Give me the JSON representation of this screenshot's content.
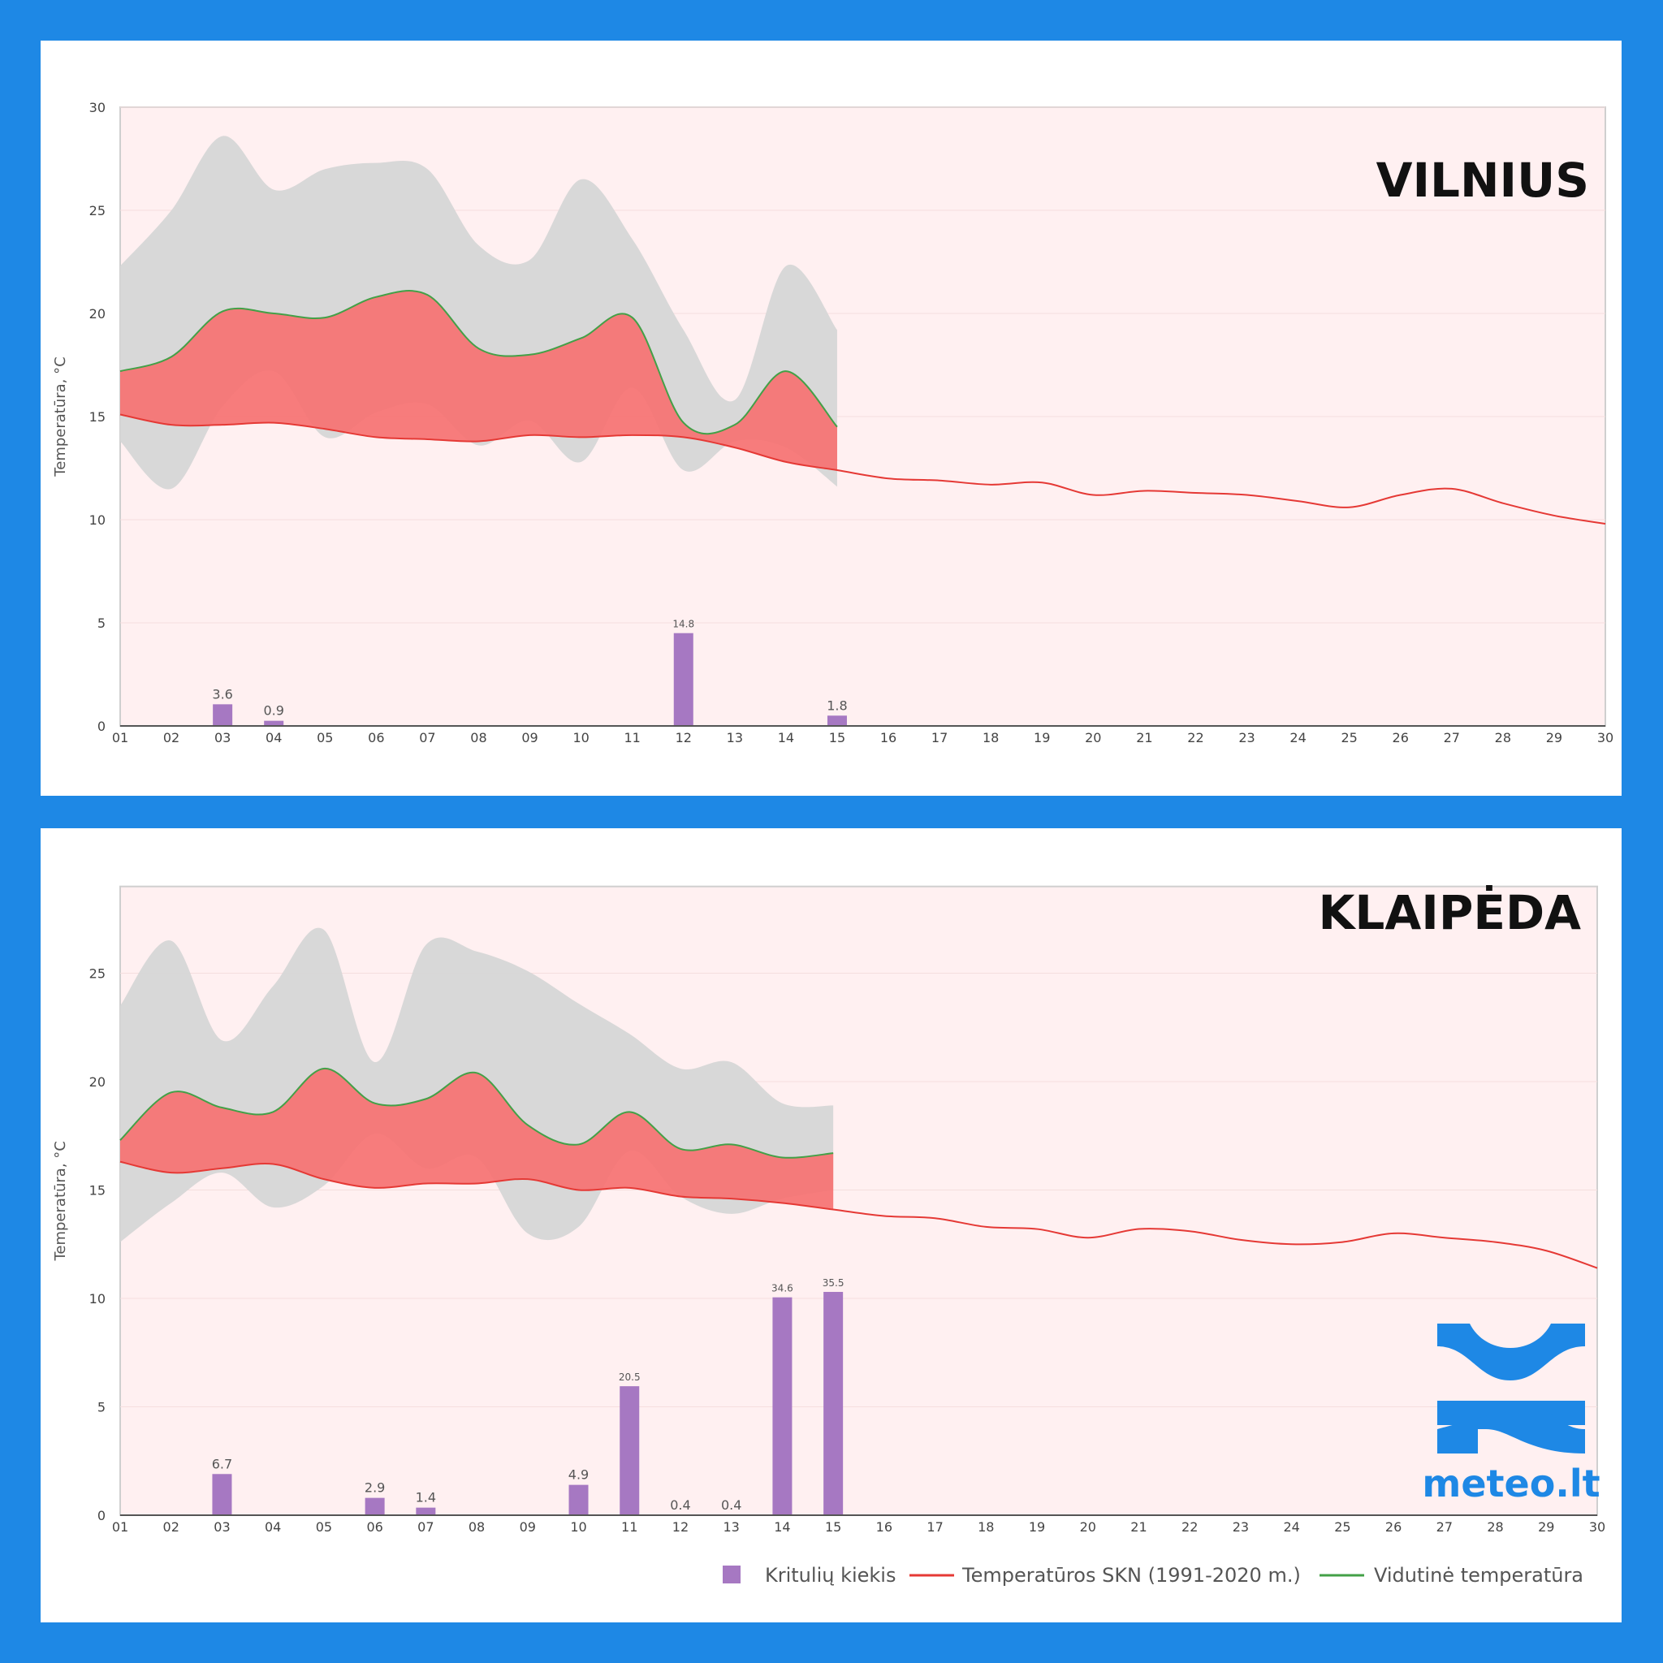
{
  "colors": {
    "frame": "#1e88e5",
    "plot_bg": "#fff0f1",
    "range_band": "#d6d6d6",
    "anomaly_fill": "#f06b6b",
    "anomaly_light": "#ff7f7f",
    "normal_line": "#e53935",
    "mean_line": "#43a047",
    "precip_bar": "#a678c2"
  },
  "legend": {
    "precip": "Kritulių kiekis",
    "normal": "Temperatūros SKN (1991-2020 m.)",
    "mean": "Vidutinė temperatūra"
  },
  "logo": {
    "text": "meteo.lt",
    "icon": "meteo-wave-logo-icon"
  },
  "chart_data": [
    {
      "type": "line",
      "title": "VILNIUS",
      "ylabel": "Temperatūra, °C",
      "ylim": [
        0,
        30
      ],
      "yticks": [
        0,
        5,
        10,
        15,
        20,
        25,
        30
      ],
      "days": [
        "01",
        "02",
        "03",
        "04",
        "05",
        "06",
        "07",
        "08",
        "09",
        "10",
        "11",
        "12",
        "13",
        "14",
        "15",
        "16",
        "17",
        "18",
        "19",
        "20",
        "21",
        "22",
        "23",
        "24",
        "25",
        "26",
        "27",
        "28",
        "29",
        "30"
      ],
      "grid": true,
      "series": [
        {
          "name": "Temperatūros SKN (1991-2020 m.)",
          "values": [
            15.1,
            14.6,
            14.6,
            14.7,
            14.4,
            14.0,
            13.9,
            13.8,
            14.1,
            14.0,
            14.1,
            14.0,
            13.5,
            12.8,
            12.4,
            12.0,
            11.9,
            11.7,
            11.8,
            11.2,
            11.4,
            11.3,
            11.2,
            10.9,
            10.6,
            11.2,
            11.5,
            10.8,
            10.2,
            9.8
          ]
        },
        {
          "name": "Vidutinė temperatūra",
          "values": [
            17.2,
            17.9,
            20.1,
            20.0,
            19.8,
            20.8,
            20.9,
            18.3,
            18.0,
            18.8,
            19.8,
            14.7,
            14.6,
            17.2,
            14.5
          ]
        }
      ],
      "range_max": [
        22.3,
        25.0,
        28.6,
        26.0,
        27.0,
        27.3,
        27.0,
        23.3,
        22.6,
        26.5,
        23.6,
        19.2,
        15.8,
        22.3,
        19.2
      ],
      "range_min": [
        13.8,
        11.5,
        15.5,
        17.2,
        14.0,
        15.2,
        15.6,
        13.6,
        14.8,
        12.8,
        16.4,
        12.4,
        13.8,
        13.5,
        11.6
      ],
      "precip": {
        "name": "Kritulių kiekis",
        "days": [
          "03",
          "04",
          "12",
          "15"
        ],
        "values": [
          3.6,
          0.9,
          14.8,
          1.8
        ],
        "bar_heights": [
          1.05,
          0.25,
          4.5,
          0.5
        ]
      }
    },
    {
      "type": "line",
      "title": "KLAIPĖDA",
      "ylabel": "Temperatūra, °C",
      "ylim": [
        0,
        29
      ],
      "yticks": [
        0,
        5,
        10,
        15,
        20,
        25
      ],
      "days": [
        "01",
        "02",
        "03",
        "04",
        "05",
        "06",
        "07",
        "08",
        "09",
        "10",
        "11",
        "12",
        "13",
        "14",
        "15",
        "16",
        "17",
        "18",
        "19",
        "20",
        "21",
        "22",
        "23",
        "24",
        "25",
        "26",
        "27",
        "28",
        "29",
        "30"
      ],
      "grid": true,
      "series": [
        {
          "name": "Temperatūros SKN (1991-2020 m.)",
          "values": [
            16.3,
            15.8,
            16.0,
            16.2,
            15.5,
            15.1,
            15.3,
            15.3,
            15.5,
            15.0,
            15.1,
            14.7,
            14.6,
            14.4,
            14.1,
            13.8,
            13.7,
            13.3,
            13.2,
            12.8,
            13.2,
            13.1,
            12.7,
            12.5,
            12.6,
            13.0,
            12.8,
            12.6,
            12.2,
            11.4
          ]
        },
        {
          "name": "Vidutinė temperatūra",
          "values": [
            17.3,
            19.5,
            18.8,
            18.6,
            20.6,
            19.0,
            19.2,
            20.4,
            18.0,
            17.1,
            18.6,
            16.9,
            17.1,
            16.5,
            16.7
          ]
        }
      ],
      "range_max": [
        23.5,
        26.5,
        21.9,
        24.4,
        27.0,
        20.9,
        26.3,
        26.0,
        25.1,
        23.6,
        22.2,
        20.6,
        20.9,
        19.0,
        18.9
      ],
      "range_min": [
        12.6,
        14.4,
        15.8,
        14.2,
        15.2,
        17.6,
        16.0,
        16.5,
        13.0,
        13.3,
        16.8,
        14.7,
        13.9,
        14.6,
        15.0
      ],
      "precip": {
        "name": "Kritulių kiekis",
        "days": [
          "03",
          "06",
          "07",
          "10",
          "11",
          "12",
          "13",
          "14",
          "15"
        ],
        "values": [
          6.7,
          2.9,
          1.4,
          4.9,
          20.5,
          0.4,
          0.4,
          34.6,
          35.5
        ],
        "bar_heights": [
          1.9,
          0.8,
          0.35,
          1.4,
          5.95,
          0,
          0,
          10.05,
          10.3
        ]
      }
    }
  ]
}
